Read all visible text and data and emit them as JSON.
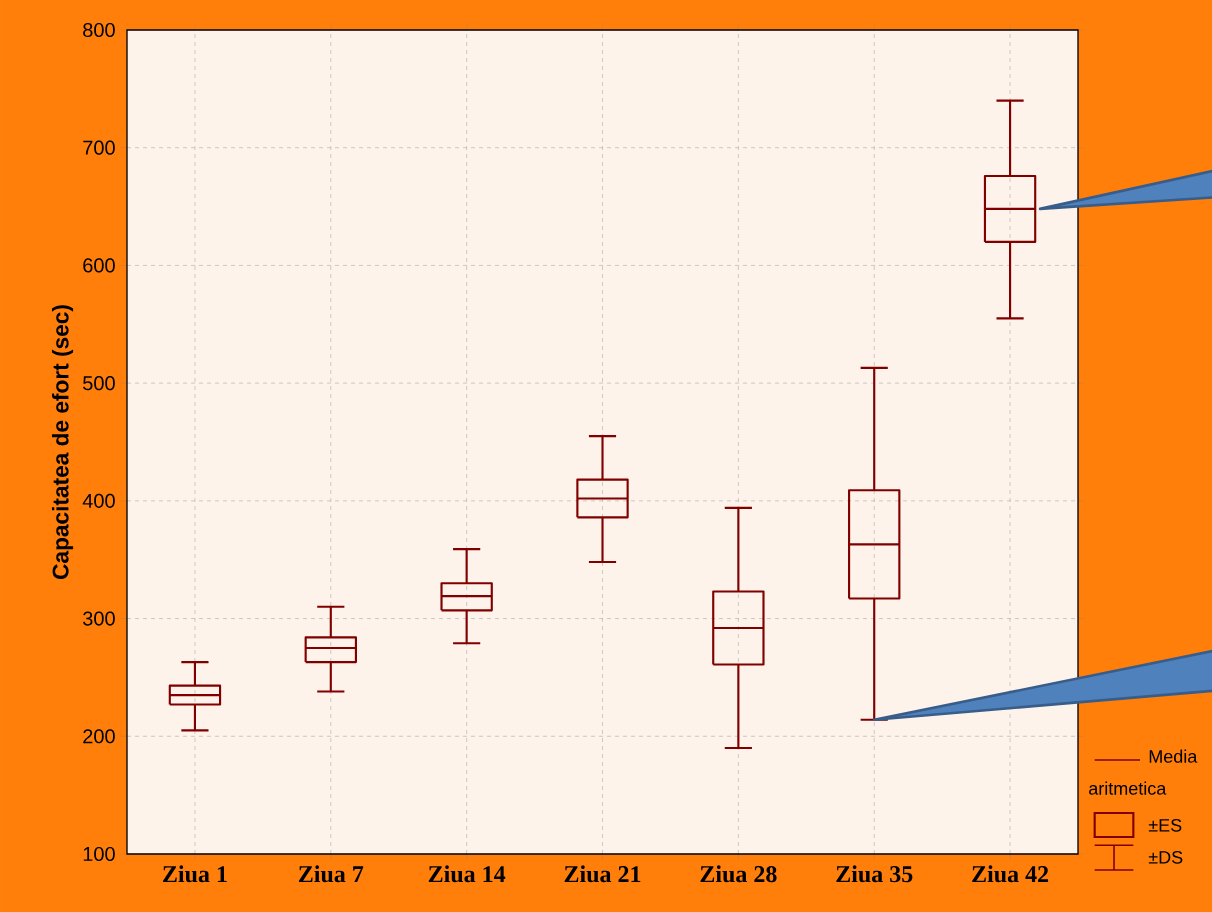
{
  "chart_data": {
    "type": "box",
    "ylabel": "Capacitatea de efort (sec)",
    "categories": [
      "Ziua 1",
      "Ziua 7",
      "Ziua 14",
      "Ziua 21",
      "Ziua 28",
      "Ziua 35",
      "Ziua 42"
    ],
    "boxes": [
      {
        "low": 205,
        "q1": 227,
        "median": 235,
        "q3": 243,
        "high": 263
      },
      {
        "low": 238,
        "q1": 263,
        "median": 275,
        "q3": 284,
        "high": 310
      },
      {
        "low": 279,
        "q1": 307,
        "median": 319,
        "q3": 330,
        "high": 359
      },
      {
        "low": 348,
        "q1": 386,
        "median": 402,
        "q3": 418,
        "high": 455
      },
      {
        "low": 190,
        "q1": 261,
        "median": 292,
        "q3": 323,
        "high": 394
      },
      {
        "low": 214,
        "q1": 317,
        "median": 363,
        "q3": 409,
        "high": 513
      },
      {
        "low": 555,
        "q1": 620,
        "median": 648,
        "q3": 676,
        "high": 740
      }
    ],
    "color": "#800000",
    "ylim": [
      100,
      800
    ],
    "yticks": [
      100,
      200,
      300,
      400,
      500,
      600,
      700,
      800
    ],
    "grid": true,
    "annotations": [
      "Media aritmetica",
      "±ES",
      "±DS"
    ]
  }
}
